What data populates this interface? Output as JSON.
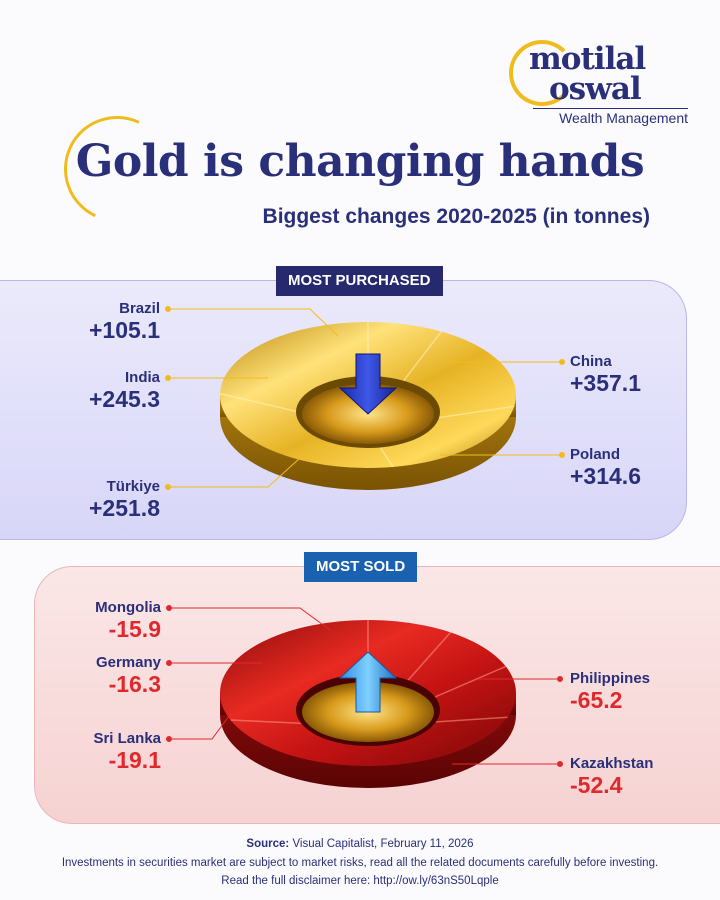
{
  "brand": {
    "line1": "motilal",
    "line2": "oswal",
    "sub": "Wealth Management"
  },
  "title": "Gold is changing hands",
  "subtitle": "Biggest changes 2020-2025 (in tonnes)",
  "colors": {
    "navy": "#2a2f7a",
    "gold": "#f2bb1d",
    "red": "#e0292c",
    "sold_tag": "#1a62b0"
  },
  "chart_data": [
    {
      "type": "pie",
      "tag": "MOST PURCHASED",
      "categories": [
        "Brazil",
        "India",
        "Türkiye",
        "China",
        "Poland"
      ],
      "values": [
        105.1,
        245.3,
        251.8,
        357.1,
        314.6
      ],
      "value_labels": [
        "+105.1",
        "+245.3",
        "+251.8",
        "+357.1",
        "+314.6"
      ]
    },
    {
      "type": "pie",
      "tag": "MOST SOLD",
      "categories": [
        "Mongolia",
        "Germany",
        "Sri Lanka",
        "Philippines",
        "Kazakhstan"
      ],
      "values": [
        -15.9,
        -16.3,
        -19.1,
        -65.2,
        -52.4
      ],
      "value_labels": [
        "-15.9",
        "-16.3",
        "-19.1",
        "-65.2",
        "-52.4"
      ]
    }
  ],
  "footer": {
    "source_label": "Source:",
    "source_text": " Visual Capitalist, February 11, 2026",
    "disclaimer": "Investments in securities market are subject to market risks, read all the related documents carefully before investing.",
    "link_line": "Read the full disclaimer here: http://ow.ly/63nS50Lqple"
  }
}
